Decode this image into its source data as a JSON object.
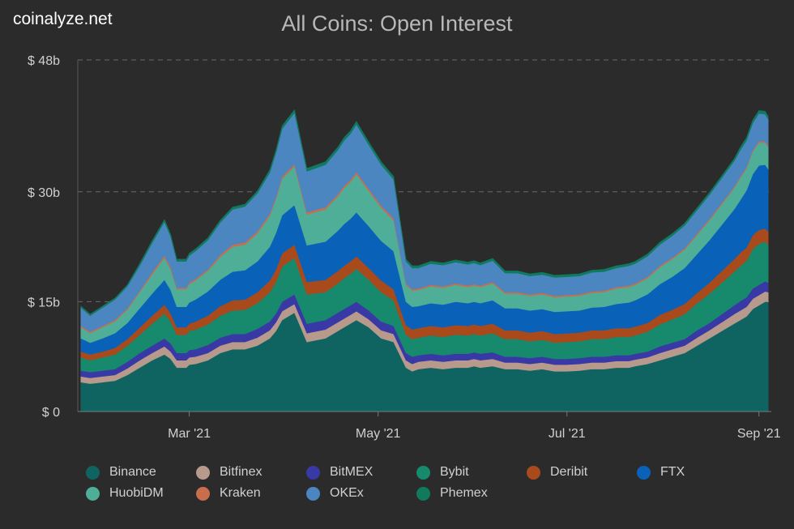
{
  "brand": "coinalyze.net",
  "chart_data": {
    "type": "area",
    "stacked": true,
    "title": "All Coins: Open Interest",
    "xlabel": "",
    "ylabel": "",
    "y_ticks": [
      {
        "value": 0,
        "label": "$ 0"
      },
      {
        "value": 15,
        "label": "$ 15b"
      },
      {
        "value": 30,
        "label": "$ 30b"
      },
      {
        "value": 48,
        "label": "$ 48b"
      }
    ],
    "ylim": [
      0,
      48
    ],
    "x_ticks": [
      {
        "day": 36,
        "label": "Mar '21"
      },
      {
        "day": 97,
        "label": "May '21"
      },
      {
        "day": 158,
        "label": "Jul '21"
      },
      {
        "day": 220,
        "label": "Sep '21"
      }
    ],
    "grid": "horizontal dashed",
    "legend_position": "bottom",
    "x": [
      1,
      4,
      8,
      12,
      16,
      20,
      24,
      28,
      30,
      32,
      35,
      36,
      38,
      42,
      46,
      50,
      54,
      58,
      62,
      64,
      66,
      70,
      74,
      80,
      84,
      86,
      88,
      90,
      94,
      98,
      102,
      106,
      108,
      110,
      114,
      118,
      122,
      126,
      128,
      130,
      134,
      138,
      142,
      146,
      150,
      154,
      158,
      162,
      166,
      170,
      174,
      178,
      180,
      184,
      188,
      192,
      196,
      200,
      204,
      208,
      212,
      214,
      216,
      218,
      220,
      222,
      223
    ],
    "series": [
      {
        "name": "Binance",
        "color": "#0f6462",
        "values": [
          4,
          3.8,
          4,
          4.2,
          5,
          6,
          7,
          7.8,
          7.2,
          6,
          6,
          6.4,
          6.5,
          7,
          8,
          8.5,
          8.5,
          9,
          10,
          11,
          12.5,
          13.5,
          9.5,
          10,
          11,
          11.5,
          12,
          12.5,
          11.5,
          10,
          9.5,
          6,
          5.5,
          5.8,
          6,
          5.8,
          6,
          6,
          6.2,
          6,
          6.2,
          5.8,
          5.8,
          5.6,
          5.8,
          5.5,
          5.5,
          5.6,
          5.8,
          5.8,
          6,
          6,
          6.2,
          6.5,
          7,
          7.5,
          8,
          9,
          10,
          11,
          12,
          12.5,
          13,
          14,
          14.5,
          15,
          15
        ]
      },
      {
        "name": "Bitfinex",
        "color": "#b89a8c",
        "values": [
          0.8,
          0.8,
          0.8,
          0.8,
          0.9,
          1,
          1,
          1.1,
          1,
          1,
          1,
          1,
          1,
          1,
          1,
          1,
          1,
          1.1,
          1.1,
          1.2,
          1.2,
          1.2,
          1.2,
          1.2,
          1.2,
          1.2,
          1.2,
          1.2,
          1.1,
          1.1,
          1.1,
          1,
          1,
          1,
          1,
          1,
          1,
          1,
          1,
          1,
          1,
          0.9,
          0.9,
          0.9,
          0.9,
          0.9,
          0.9,
          0.9,
          0.9,
          0.9,
          0.9,
          0.9,
          0.9,
          0.9,
          1,
          1,
          1,
          1.1,
          1.1,
          1.2,
          1.3,
          1.3,
          1.3,
          1.4,
          1.4,
          1.4,
          1.3
        ]
      },
      {
        "name": "BitMEX",
        "color": "#3939a6",
        "values": [
          0.8,
          0.8,
          0.8,
          0.8,
          0.9,
          1,
          1,
          1.1,
          1.1,
          1,
          1,
          1,
          1,
          1.1,
          1.1,
          1.1,
          1.1,
          1.2,
          1.2,
          1.2,
          1.3,
          1.3,
          1.3,
          1.3,
          1.3,
          1.3,
          1.3,
          1.3,
          1.2,
          1.2,
          1.1,
          1,
          1,
          0.9,
          0.9,
          0.9,
          0.9,
          0.9,
          0.9,
          0.9,
          0.9,
          0.8,
          0.8,
          0.8,
          0.8,
          0.8,
          0.8,
          0.8,
          0.8,
          0.8,
          0.8,
          0.8,
          0.8,
          0.8,
          0.9,
          0.9,
          0.9,
          1,
          1,
          1.1,
          1.2,
          1.3,
          1.3,
          1.4,
          1.4,
          1.4,
          1.3
        ]
      },
      {
        "name": "Bybit",
        "color": "#178a6e",
        "values": [
          1.8,
          1.6,
          1.8,
          2,
          2.2,
          2.5,
          3,
          3.4,
          3,
          2.5,
          2.5,
          2.6,
          2.7,
          2.8,
          3,
          3.2,
          3.3,
          3.5,
          4,
          4.3,
          4.8,
          5,
          4,
          3.8,
          4,
          4.2,
          4.3,
          4.5,
          4.2,
          4,
          3.5,
          2.5,
          2.4,
          2.4,
          2.5,
          2.5,
          2.6,
          2.5,
          2.5,
          2.5,
          2.6,
          2.4,
          2.4,
          2.3,
          2.3,
          2.2,
          2.3,
          2.3,
          2.4,
          2.4,
          2.5,
          2.5,
          2.5,
          2.7,
          3,
          3.2,
          3.4,
          3.7,
          4,
          4.3,
          4.6,
          4.8,
          5,
          5.4,
          5.6,
          5.4,
          5.2
        ]
      },
      {
        "name": "Deribit",
        "color": "#a84a1c",
        "values": [
          0.8,
          0.8,
          0.8,
          0.9,
          0.9,
          1,
          1.1,
          1.2,
          1.1,
          1,
          1,
          1,
          1.1,
          1.2,
          1.3,
          1.4,
          1.4,
          1.5,
          1.6,
          1.7,
          1.8,
          1.8,
          1.7,
          1.7,
          1.7,
          1.7,
          1.7,
          1.7,
          1.6,
          1.6,
          1.5,
          1.3,
          1.3,
          1.3,
          1.3,
          1.3,
          1.3,
          1.3,
          1.3,
          1.3,
          1.3,
          1.2,
          1.2,
          1.2,
          1.2,
          1.2,
          1.2,
          1.2,
          1.2,
          1.2,
          1.2,
          1.2,
          1.2,
          1.2,
          1.3,
          1.3,
          1.4,
          1.4,
          1.5,
          1.6,
          1.7,
          1.8,
          1.8,
          1.9,
          1.9,
          1.8,
          1.8
        ]
      },
      {
        "name": "FTX",
        "color": "#0a62b8",
        "values": [
          1.8,
          1.6,
          1.8,
          2,
          2.2,
          2.6,
          3,
          3.4,
          3.2,
          2.8,
          2.8,
          2.9,
          3,
          3.3,
          3.6,
          3.9,
          4,
          4.2,
          4.6,
          5,
          5.2,
          5.4,
          5,
          5.2,
          5.5,
          5.7,
          5.8,
          6,
          5.7,
          5.4,
          5.2,
          3.2,
          3.1,
          3,
          3.1,
          3.1,
          3.2,
          3.1,
          3.1,
          3.1,
          3.2,
          3,
          3,
          3,
          3,
          3,
          3,
          3,
          3.1,
          3.2,
          3.3,
          3.5,
          3.6,
          3.9,
          4.2,
          4.5,
          4.9,
          5.3,
          5.8,
          6.3,
          6.8,
          7.2,
          7.8,
          8.3,
          8.8,
          8.7,
          8.5
        ]
      },
      {
        "name": "HuobiDM",
        "color": "#4fae98",
        "values": [
          1.5,
          1.3,
          1.5,
          1.6,
          1.8,
          2.2,
          2.6,
          3,
          2.8,
          2.4,
          2.4,
          2.5,
          2.6,
          2.8,
          3.1,
          3.4,
          3.5,
          3.8,
          4.2,
          4.6,
          5,
          5.3,
          4.2,
          4.4,
          4.7,
          4.9,
          5,
          5.2,
          4.8,
          4.5,
          4.2,
          2.3,
          2.2,
          2.2,
          2.3,
          2.3,
          2.3,
          2.2,
          2.2,
          2.2,
          2.3,
          2,
          2,
          2,
          2,
          2,
          2,
          2,
          2,
          2,
          2.1,
          2.1,
          2.1,
          2.2,
          2.3,
          2.4,
          2.5,
          2.6,
          2.7,
          2.8,
          2.9,
          3,
          3,
          3.1,
          3.1,
          3,
          3
        ]
      },
      {
        "name": "Kraken",
        "color": "#c86e4c",
        "values": [
          0.2,
          0.2,
          0.2,
          0.2,
          0.2,
          0.2,
          0.3,
          0.3,
          0.3,
          0.2,
          0.2,
          0.2,
          0.2,
          0.2,
          0.3,
          0.3,
          0.3,
          0.3,
          0.3,
          0.3,
          0.3,
          0.3,
          0.3,
          0.3,
          0.3,
          0.3,
          0.3,
          0.3,
          0.3,
          0.3,
          0.3,
          0.2,
          0.2,
          0.2,
          0.2,
          0.2,
          0.2,
          0.2,
          0.2,
          0.2,
          0.2,
          0.2,
          0.2,
          0.2,
          0.2,
          0.2,
          0.2,
          0.2,
          0.2,
          0.2,
          0.2,
          0.2,
          0.2,
          0.2,
          0.2,
          0.2,
          0.2,
          0.2,
          0.2,
          0.2,
          0.2,
          0.2,
          0.2,
          0.2,
          0.2,
          0.2,
          0.2
        ]
      },
      {
        "name": "OKEx",
        "color": "#4c86c0",
        "values": [
          2.5,
          2.2,
          2.5,
          2.8,
          3,
          3.4,
          4,
          4.6,
          4.2,
          3.6,
          3.6,
          3.7,
          3.8,
          4,
          4.4,
          4.8,
          4.9,
          5.2,
          5.6,
          6,
          6.5,
          7,
          5.6,
          5.8,
          6,
          6.2,
          6.3,
          6.5,
          6,
          5.6,
          5.3,
          3,
          2.9,
          2.8,
          2.9,
          2.9,
          2.9,
          2.9,
          2.9,
          2.8,
          2.9,
          2.6,
          2.6,
          2.5,
          2.5,
          2.5,
          2.5,
          2.5,
          2.6,
          2.6,
          2.6,
          2.7,
          2.7,
          2.8,
          2.9,
          3,
          3.1,
          3.2,
          3.3,
          3.4,
          3.5,
          3.6,
          3.6,
          3.7,
          3.8,
          3.7,
          3.6
        ]
      },
      {
        "name": "Phemex",
        "color": "#0f7a5e",
        "values": [
          0.2,
          0.2,
          0.2,
          0.2,
          0.2,
          0.3,
          0.3,
          0.3,
          0.3,
          0.3,
          0.3,
          0.3,
          0.3,
          0.3,
          0.3,
          0.3,
          0.3,
          0.3,
          0.4,
          0.4,
          0.4,
          0.4,
          0.4,
          0.4,
          0.4,
          0.4,
          0.4,
          0.4,
          0.4,
          0.4,
          0.4,
          0.3,
          0.3,
          0.3,
          0.3,
          0.3,
          0.3,
          0.3,
          0.3,
          0.3,
          0.3,
          0.3,
          0.3,
          0.3,
          0.3,
          0.3,
          0.3,
          0.3,
          0.3,
          0.3,
          0.3,
          0.3,
          0.3,
          0.3,
          0.3,
          0.3,
          0.3,
          0.3,
          0.3,
          0.3,
          0.3,
          0.4,
          0.4,
          0.4,
          0.4,
          0.4,
          0.4
        ]
      }
    ]
  }
}
